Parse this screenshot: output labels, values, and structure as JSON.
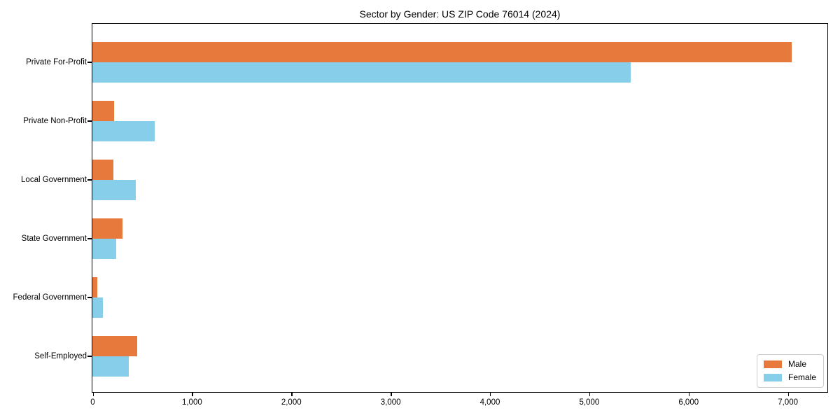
{
  "page": {
    "background": "#ffffff",
    "axis_color": "#000000"
  },
  "chart_data": {
    "type": "bar",
    "orientation": "horizontal",
    "title": "Sector by Gender: US ZIP Code 76014 (2024)",
    "categories": [
      "Private For-Profit",
      "Private Non-Profit",
      "Local Government",
      "State Government",
      "Federal Government",
      "Self-Employed"
    ],
    "series": [
      {
        "name": "Male",
        "color": "#e8793d",
        "values": [
          7040,
          220,
          210,
          300,
          50,
          450
        ]
      },
      {
        "name": "Female",
        "color": "#87ceeb",
        "values": [
          5420,
          625,
          440,
          240,
          105,
          370
        ]
      }
    ],
    "xlabel": "",
    "ylabel": "",
    "xlim": [
      0,
      7394
    ],
    "x_ticks": [
      0,
      1000,
      2000,
      3000,
      4000,
      5000,
      6000,
      7000
    ],
    "x_tick_labels": [
      "0",
      "1,000",
      "2,000",
      "3,000",
      "4,000",
      "5,000",
      "6,000",
      "7,000"
    ],
    "grid": false,
    "legend": {
      "position": "lower-right",
      "entries": [
        "Male",
        "Female"
      ]
    }
  }
}
